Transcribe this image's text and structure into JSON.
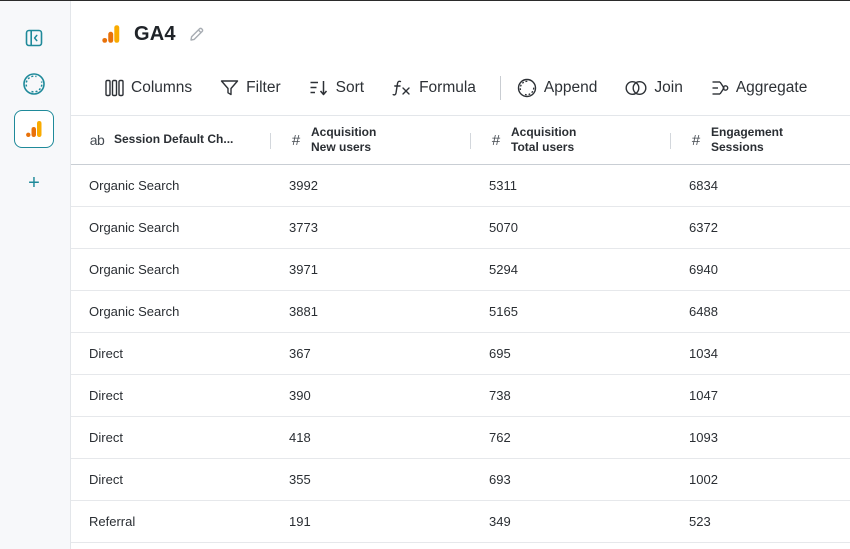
{
  "header": {
    "title": "GA4"
  },
  "toolbar": {
    "columns": "Columns",
    "filter": "Filter",
    "sort": "Sort",
    "formula": "Formula",
    "append": "Append",
    "join": "Join",
    "aggregate": "Aggregate"
  },
  "rail": {
    "add_symbol": "+"
  },
  "table": {
    "columns": [
      {
        "type_icon": "ab",
        "line1": "Session Default Ch...",
        "line2": ""
      },
      {
        "type_icon": "#",
        "line1": "Acquisition",
        "line2": "New users"
      },
      {
        "type_icon": "#",
        "line1": "Acquisition",
        "line2": "Total users"
      },
      {
        "type_icon": "#",
        "line1": "Engagement",
        "line2": "Sessions"
      }
    ],
    "rows": [
      [
        "Organic Search",
        "3992",
        "5311",
        "6834"
      ],
      [
        "Organic Search",
        "3773",
        "5070",
        "6372"
      ],
      [
        "Organic Search",
        "3971",
        "5294",
        "6940"
      ],
      [
        "Organic Search",
        "3881",
        "5165",
        "6488"
      ],
      [
        "Direct",
        "367",
        "695",
        "1034"
      ],
      [
        "Direct",
        "390",
        "738",
        "1047"
      ],
      [
        "Direct",
        "418",
        "762",
        "1093"
      ],
      [
        "Direct",
        "355",
        "693",
        "1002"
      ],
      [
        "Referral",
        "191",
        "349",
        "523"
      ]
    ]
  },
  "colors": {
    "accent": "#1f8a9a",
    "ga_orange_dark": "#e8710a",
    "ga_orange_light": "#f9ab00"
  }
}
